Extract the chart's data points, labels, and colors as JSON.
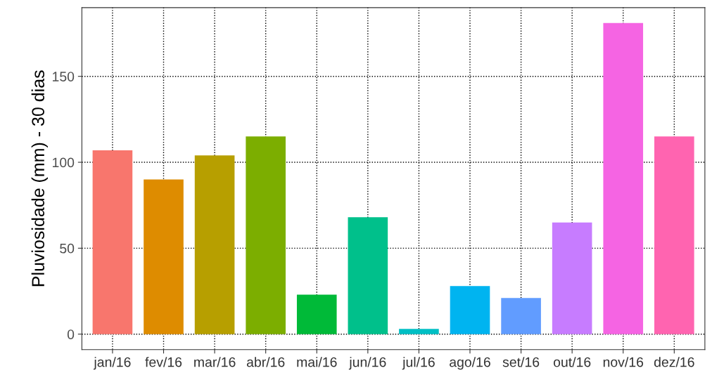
{
  "chart_data": {
    "type": "bar",
    "ylabel": "Pluviosidade (mm) - 30 dias",
    "categories": [
      "jan/16",
      "fev/16",
      "mar/16",
      "abr/16",
      "mai/16",
      "jun/16",
      "jul/16",
      "ago/16",
      "set/16",
      "out/16",
      "nov/16",
      "dez/16"
    ],
    "values": [
      107,
      90,
      104,
      115,
      23,
      68,
      3,
      28,
      21,
      65,
      181,
      115
    ],
    "colors": [
      "#F8766D",
      "#DE8C00",
      "#B79F00",
      "#7CAE00",
      "#00BA38",
      "#00C08B",
      "#00BFC4",
      "#00B4F0",
      "#619CFF",
      "#C77CFF",
      "#F564E3",
      "#FF64B0"
    ],
    "ylim": [
      -9,
      190
    ],
    "yticks": [
      0,
      50,
      100,
      150
    ],
    "grid": true
  }
}
